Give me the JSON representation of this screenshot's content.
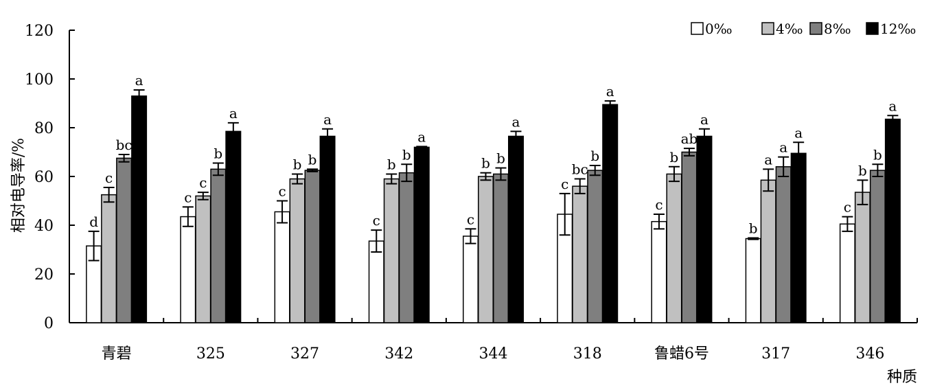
{
  "chart_data": {
    "type": "bar",
    "title": "",
    "xlabel": "种质",
    "ylabel": "相对电导率/%",
    "ylim": [
      0,
      120
    ],
    "yticks": [
      0,
      20,
      40,
      60,
      80,
      100,
      120
    ],
    "grid": false,
    "legend": "top-right",
    "categories": [
      "青碧",
      "325",
      "327",
      "342",
      "344",
      "318",
      "鲁蜡6号",
      "317",
      "346"
    ],
    "series": [
      {
        "name": "0‰",
        "color": "#ffffff",
        "values": [
          31.5,
          43.5,
          45.5,
          33.5,
          35.5,
          44.5,
          41.5,
          34.5,
          40.5
        ],
        "errors": [
          6.0,
          4.0,
          4.5,
          4.5,
          3.0,
          8.5,
          3.0,
          0.3,
          3.0
        ],
        "labels": [
          "d",
          "c",
          "c",
          "c",
          "c",
          "c",
          "c",
          "b",
          "c"
        ]
      },
      {
        "name": "4‰",
        "color": "#c0c0c0",
        "values": [
          52.5,
          52.0,
          59.0,
          59.0,
          60.0,
          56.0,
          61.0,
          58.5,
          53.5
        ],
        "errors": [
          3.0,
          1.5,
          2.0,
          2.0,
          1.5,
          3.0,
          3.0,
          4.5,
          5.0
        ],
        "labels": [
          "c",
          "c",
          "b",
          "b",
          "b",
          "bc",
          "b",
          "a",
          "b"
        ]
      },
      {
        "name": "8‰",
        "color": "#7f7f7f",
        "values": [
          67.5,
          63.0,
          62.5,
          61.5,
          61.0,
          62.5,
          70.0,
          64.0,
          62.5
        ],
        "errors": [
          1.5,
          2.5,
          0.5,
          3.5,
          2.5,
          2.0,
          1.5,
          4.0,
          2.5
        ],
        "labels": [
          "bc",
          "b",
          "b",
          "b",
          "b",
          "b",
          "ab",
          "a",
          "b"
        ]
      },
      {
        "name": "12‰",
        "color": "#000000",
        "values": [
          93.0,
          78.5,
          76.5,
          72.0,
          76.5,
          89.5,
          76.5,
          69.5,
          83.5
        ],
        "errors": [
          2.5,
          3.5,
          3.0,
          0.3,
          2.0,
          1.5,
          3.0,
          4.5,
          1.5
        ],
        "labels": [
          "a",
          "a",
          "a",
          "a",
          "a",
          "a",
          "a",
          "a",
          "a"
        ]
      }
    ]
  }
}
